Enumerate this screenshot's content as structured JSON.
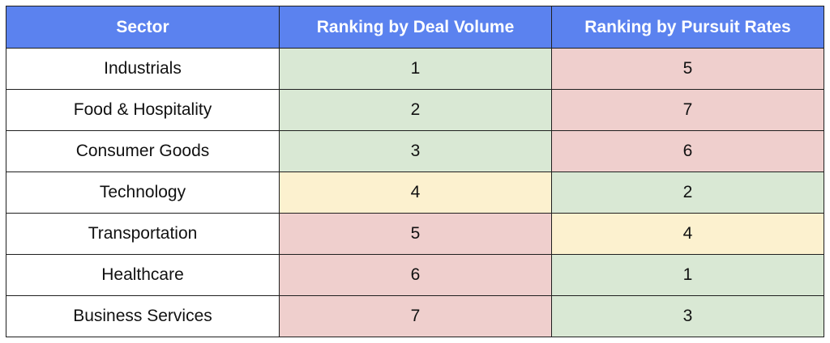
{
  "table": {
    "headers": [
      "Sector",
      "Ranking by Deal Volume",
      "Ranking by Pursuit Rates"
    ],
    "colors": {
      "header_bg": "#5b82ef",
      "green": "#d9e8d4",
      "red": "#efcfcd",
      "yellow": "#fcf1cf"
    },
    "rows": [
      {
        "sector": "Industrials",
        "deal_volume": "1",
        "deal_volume_color": "green",
        "pursuit_rates": "5",
        "pursuit_rates_color": "red"
      },
      {
        "sector": "Food & Hospitality",
        "deal_volume": "2",
        "deal_volume_color": "green",
        "pursuit_rates": "7",
        "pursuit_rates_color": "red"
      },
      {
        "sector": "Consumer Goods",
        "deal_volume": "3",
        "deal_volume_color": "green",
        "pursuit_rates": "6",
        "pursuit_rates_color": "red"
      },
      {
        "sector": "Technology",
        "deal_volume": "4",
        "deal_volume_color": "yellow",
        "pursuit_rates": "2",
        "pursuit_rates_color": "green"
      },
      {
        "sector": "Transportation",
        "deal_volume": "5",
        "deal_volume_color": "red",
        "pursuit_rates": "4",
        "pursuit_rates_color": "yellow"
      },
      {
        "sector": "Healthcare",
        "deal_volume": "6",
        "deal_volume_color": "red",
        "pursuit_rates": "1",
        "pursuit_rates_color": "green"
      },
      {
        "sector": "Business Services",
        "deal_volume": "7",
        "deal_volume_color": "red",
        "pursuit_rates": "3",
        "pursuit_rates_color": "green"
      }
    ]
  }
}
